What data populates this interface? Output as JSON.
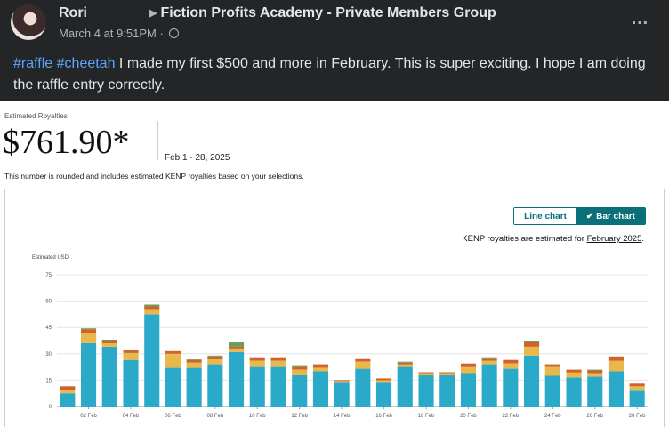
{
  "post": {
    "author": "Rori",
    "group": "Fiction Profits Academy - Private Members Group",
    "timestamp": "March 4 at 9:51PM",
    "separator": "·",
    "more_icon": "…",
    "hashtag_1": "#raffle",
    "hashtag_2": "#cheetah",
    "body": " I made my first $500 and more in February. This is super exciting. I hope I am doing the raffle entry correctly."
  },
  "report": {
    "estimated_label": "Estimated Royalties",
    "estimated_value": "$761.90*",
    "date_range": "Feb 1 - 28, 2025",
    "note": "This number is rounded and includes estimated KENP royalties based on your selections.",
    "line_chart_label": "Line chart",
    "bar_chart_label": "Bar chart",
    "bar_chart_check": "✔",
    "kenp_note_prefix": "KENP royalties are estimated for ",
    "kenp_note_link": "February 2025",
    "kenp_note_suffix": "."
  },
  "chart_data": {
    "type": "bar",
    "stacked": true,
    "ylabel": "Estimated USD",
    "ylim": [
      0,
      75
    ],
    "yticks": [
      0,
      15,
      30,
      45,
      60,
      75
    ],
    "grid": true,
    "categories": [
      "01 Feb",
      "02 Feb",
      "03 Feb",
      "04 Feb",
      "05 Feb",
      "06 Feb",
      "07 Feb",
      "08 Feb",
      "09 Feb",
      "10 Feb",
      "11 Feb",
      "12 Feb",
      "13 Feb",
      "14 Feb",
      "15 Feb",
      "16 Feb",
      "17 Feb",
      "18 Feb",
      "19 Feb",
      "20 Feb",
      "21 Feb",
      "22 Feb",
      "23 Feb",
      "24 Feb",
      "25 Feb",
      "26 Feb",
      "27 Feb",
      "28 Feb"
    ],
    "tick_labels": [
      "02 Feb",
      "04 Feb",
      "06 Feb",
      "08 Feb",
      "10 Feb",
      "12 Feb",
      "14 Feb",
      "16 Feb",
      "18 Feb",
      "20 Feb",
      "22 Feb",
      "24 Feb",
      "26 Feb",
      "28 Feb"
    ],
    "colors": [
      "#2ba9c9",
      "#e8b84a",
      "#d2622d",
      "#6b9e5c"
    ],
    "series": [
      {
        "values": [
          7.5,
          36,
          34,
          26.5,
          52.5,
          22,
          22,
          24,
          31,
          23,
          23,
          18,
          20,
          14,
          21.5,
          14,
          23,
          18,
          18,
          19,
          24,
          21.5,
          29,
          17.5,
          16.5,
          17,
          20,
          9.5
        ]
      },
      {
        "values": [
          2,
          6,
          2,
          4,
          3,
          8,
          3,
          3,
          2,
          3,
          3,
          3,
          2,
          0.5,
          4,
          1,
          1,
          1,
          1,
          4,
          2,
          3,
          5,
          5.5,
          3,
          2,
          6,
          2
        ]
      },
      {
        "values": [
          2,
          2,
          1.5,
          1.5,
          1.5,
          1.5,
          1.5,
          1.5,
          1,
          2,
          2,
          2,
          2,
          0.5,
          2,
          1,
          1,
          0.5,
          0.5,
          1.5,
          1.5,
          2,
          2.5,
          1,
          1.5,
          1.5,
          2.5,
          1.5
        ]
      },
      {
        "values": [
          0,
          0.5,
          0.5,
          0,
          1,
          0,
          0.5,
          0.5,
          3,
          0,
          0,
          0.5,
          0,
          0,
          0,
          0,
          0.5,
          0,
          0,
          0,
          0.5,
          0,
          1,
          0,
          0,
          0.5,
          0,
          0
        ]
      }
    ]
  }
}
